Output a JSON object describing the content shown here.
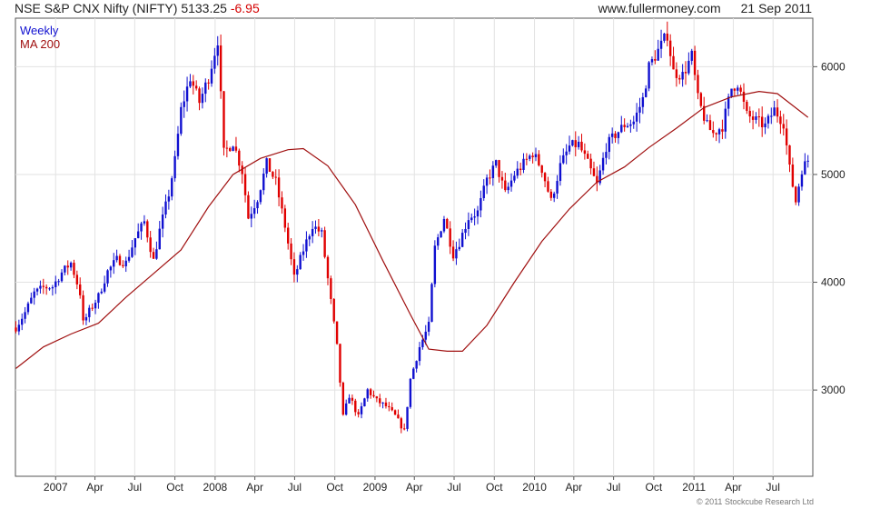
{
  "header": {
    "title": "NSE S&P CNX Nifty (NIFTY)",
    "last": "5133.25",
    "change": "-6.95",
    "site": "www.fullermoney.com",
    "date": "21 Sep 2011"
  },
  "footer": {
    "copyright": "© 2011 Stockcube Research Ltd"
  },
  "colors": {
    "up": "#1010d0",
    "down": "#e00000",
    "ma": "#a01010",
    "grid": "#e2e2e2"
  },
  "chart_data": {
    "type": "line",
    "style": "candlestick-weekly",
    "legend": [
      {
        "label": "Weekly",
        "color": "#1010d0"
      },
      {
        "label": "MA 200",
        "color": "#a01010"
      }
    ],
    "legend_position": "top-left",
    "grid": true,
    "y_axis_position": "right",
    "ylim": [
      2200,
      6450
    ],
    "yticks": [
      3000,
      4000,
      5000,
      6000
    ],
    "xlim": [
      "2006-10-01",
      "2011-09-30"
    ],
    "xticks": [
      {
        "label": "2007",
        "date": "2007-01-01"
      },
      {
        "label": "Apr",
        "date": "2007-04-01"
      },
      {
        "label": "Jul",
        "date": "2007-07-01"
      },
      {
        "label": "Oct",
        "date": "2007-10-01"
      },
      {
        "label": "2008",
        "date": "2008-01-01"
      },
      {
        "label": "Apr",
        "date": "2008-04-01"
      },
      {
        "label": "Jul",
        "date": "2008-07-01"
      },
      {
        "label": "Oct",
        "date": "2008-10-01"
      },
      {
        "label": "2009",
        "date": "2009-01-01"
      },
      {
        "label": "Apr",
        "date": "2009-04-01"
      },
      {
        "label": "Jul",
        "date": "2009-07-01"
      },
      {
        "label": "Oct",
        "date": "2009-10-01"
      },
      {
        "label": "2010",
        "date": "2010-01-01"
      },
      {
        "label": "Apr",
        "date": "2010-04-01"
      },
      {
        "label": "Jul",
        "date": "2010-07-01"
      },
      {
        "label": "Oct",
        "date": "2010-10-01"
      },
      {
        "label": "2011",
        "date": "2011-01-01"
      },
      {
        "label": "Apr",
        "date": "2011-04-01"
      },
      {
        "label": "Jul",
        "date": "2011-07-01"
      }
    ],
    "series": [
      {
        "name": "Weekly",
        "kind": "close",
        "points": [
          [
            "2006-10-02",
            3580
          ],
          [
            "2006-10-23",
            3720
          ],
          [
            "2006-11-13",
            3900
          ],
          [
            "2006-12-04",
            3950
          ],
          [
            "2006-12-25",
            3960
          ],
          [
            "2007-01-15",
            4090
          ],
          [
            "2007-02-05",
            4180
          ],
          [
            "2007-02-26",
            3900
          ],
          [
            "2007-03-05",
            3620
          ],
          [
            "2007-03-19",
            3730
          ],
          [
            "2007-04-09",
            3870
          ],
          [
            "2007-04-30",
            4100
          ],
          [
            "2007-05-21",
            4210
          ],
          [
            "2007-06-11",
            4180
          ],
          [
            "2007-07-02",
            4410
          ],
          [
            "2007-07-23",
            4560
          ],
          [
            "2007-08-13",
            4200
          ],
          [
            "2007-08-27",
            4480
          ],
          [
            "2007-09-17",
            4820
          ],
          [
            "2007-10-01",
            5130
          ],
          [
            "2007-10-15",
            5600
          ],
          [
            "2007-11-05",
            5900
          ],
          [
            "2007-11-26",
            5670
          ],
          [
            "2007-12-17",
            5900
          ],
          [
            "2008-01-07",
            6250
          ],
          [
            "2008-01-21",
            5200
          ],
          [
            "2008-02-11",
            5300
          ],
          [
            "2008-03-03",
            5030
          ],
          [
            "2008-03-17",
            4600
          ],
          [
            "2008-04-07",
            4780
          ],
          [
            "2008-04-28",
            5100
          ],
          [
            "2008-05-19",
            4930
          ],
          [
            "2008-06-09",
            4520
          ],
          [
            "2008-06-30",
            4040
          ],
          [
            "2008-07-21",
            4300
          ],
          [
            "2008-08-11",
            4530
          ],
          [
            "2008-09-01",
            4450
          ],
          [
            "2008-09-15",
            4030
          ],
          [
            "2008-10-06",
            3400
          ],
          [
            "2008-10-20",
            2750
          ],
          [
            "2008-11-03",
            2950
          ],
          [
            "2008-11-24",
            2750
          ],
          [
            "2008-12-15",
            3000
          ],
          [
            "2009-01-05",
            2900
          ],
          [
            "2009-01-26",
            2850
          ],
          [
            "2009-02-16",
            2760
          ],
          [
            "2009-03-09",
            2620
          ],
          [
            "2009-03-23",
            3100
          ],
          [
            "2009-04-13",
            3400
          ],
          [
            "2009-05-04",
            3600
          ],
          [
            "2009-05-18",
            4320
          ],
          [
            "2009-06-08",
            4600
          ],
          [
            "2009-06-29",
            4260
          ],
          [
            "2009-07-13",
            4370
          ],
          [
            "2009-08-03",
            4600
          ],
          [
            "2009-08-24",
            4650
          ],
          [
            "2009-09-14",
            4950
          ],
          [
            "2009-10-05",
            5100
          ],
          [
            "2009-10-26",
            4820
          ],
          [
            "2009-11-16",
            5000
          ],
          [
            "2009-12-07",
            5100
          ],
          [
            "2009-12-28",
            5200
          ],
          [
            "2010-01-18",
            5050
          ],
          [
            "2010-02-08",
            4750
          ],
          [
            "2010-03-01",
            5080
          ],
          [
            "2010-03-22",
            5260
          ],
          [
            "2010-04-12",
            5280
          ],
          [
            "2010-05-03",
            5100
          ],
          [
            "2010-05-24",
            4900
          ],
          [
            "2010-06-14",
            5260
          ],
          [
            "2010-07-05",
            5370
          ],
          [
            "2010-07-26",
            5460
          ],
          [
            "2010-08-16",
            5490
          ],
          [
            "2010-09-06",
            5700
          ],
          [
            "2010-09-20",
            6000
          ],
          [
            "2010-10-11",
            6150
          ],
          [
            "2010-11-01",
            6300
          ],
          [
            "2010-11-15",
            5950
          ],
          [
            "2010-12-06",
            5920
          ],
          [
            "2010-12-27",
            6100
          ],
          [
            "2011-01-10",
            5700
          ],
          [
            "2011-01-31",
            5450
          ],
          [
            "2011-02-14",
            5380
          ],
          [
            "2011-03-07",
            5450
          ],
          [
            "2011-03-28",
            5800
          ],
          [
            "2011-04-11",
            5850
          ],
          [
            "2011-05-02",
            5550
          ],
          [
            "2011-05-23",
            5500
          ],
          [
            "2011-06-13",
            5450
          ],
          [
            "2011-07-04",
            5600
          ],
          [
            "2011-07-25",
            5480
          ],
          [
            "2011-08-08",
            5050
          ],
          [
            "2011-08-22",
            4750
          ],
          [
            "2011-09-05",
            5050
          ],
          [
            "2011-09-19",
            5133.25
          ]
        ]
      },
      {
        "name": "MA 200",
        "kind": "line",
        "points": [
          [
            "2006-10-02",
            3200
          ],
          [
            "2006-12-04",
            3400
          ],
          [
            "2007-02-05",
            3520
          ],
          [
            "2007-04-09",
            3620
          ],
          [
            "2007-06-11",
            3860
          ],
          [
            "2007-08-13",
            4080
          ],
          [
            "2007-10-15",
            4300
          ],
          [
            "2007-12-17",
            4700
          ],
          [
            "2008-02-11",
            5000
          ],
          [
            "2008-04-14",
            5150
          ],
          [
            "2008-06-16",
            5230
          ],
          [
            "2008-07-21",
            5240
          ],
          [
            "2008-09-15",
            5080
          ],
          [
            "2008-11-17",
            4720
          ],
          [
            "2009-01-19",
            4200
          ],
          [
            "2009-03-23",
            3700
          ],
          [
            "2009-05-04",
            3380
          ],
          [
            "2009-06-15",
            3360
          ],
          [
            "2009-07-20",
            3360
          ],
          [
            "2009-09-14",
            3600
          ],
          [
            "2009-11-16",
            4000
          ],
          [
            "2010-01-18",
            4380
          ],
          [
            "2010-03-22",
            4680
          ],
          [
            "2010-05-24",
            4930
          ],
          [
            "2010-07-26",
            5070
          ],
          [
            "2010-09-20",
            5250
          ],
          [
            "2010-11-22",
            5430
          ],
          [
            "2011-01-24",
            5620
          ],
          [
            "2011-03-28",
            5720
          ],
          [
            "2011-05-30",
            5770
          ],
          [
            "2011-07-11",
            5750
          ],
          [
            "2011-09-19",
            5530
          ]
        ]
      }
    ]
  }
}
